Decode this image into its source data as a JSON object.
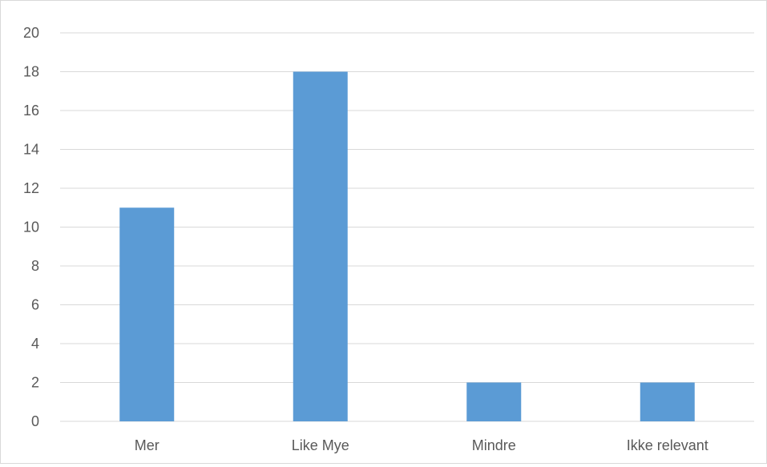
{
  "chart_data": {
    "type": "bar",
    "title": "",
    "xlabel": "",
    "ylabel": "",
    "categories": [
      "Mer",
      "Like Mye",
      "Mindre",
      "Ikke relevant"
    ],
    "values": [
      11,
      18,
      2,
      2
    ],
    "ylim": [
      0,
      20
    ],
    "yticks": [
      0,
      2,
      4,
      6,
      8,
      10,
      12,
      14,
      16,
      18,
      20
    ],
    "grid": true,
    "legend": "none",
    "bar_color": "#5b9bd5",
    "grid_color": "#d9d9d9",
    "text_color": "#595959"
  }
}
